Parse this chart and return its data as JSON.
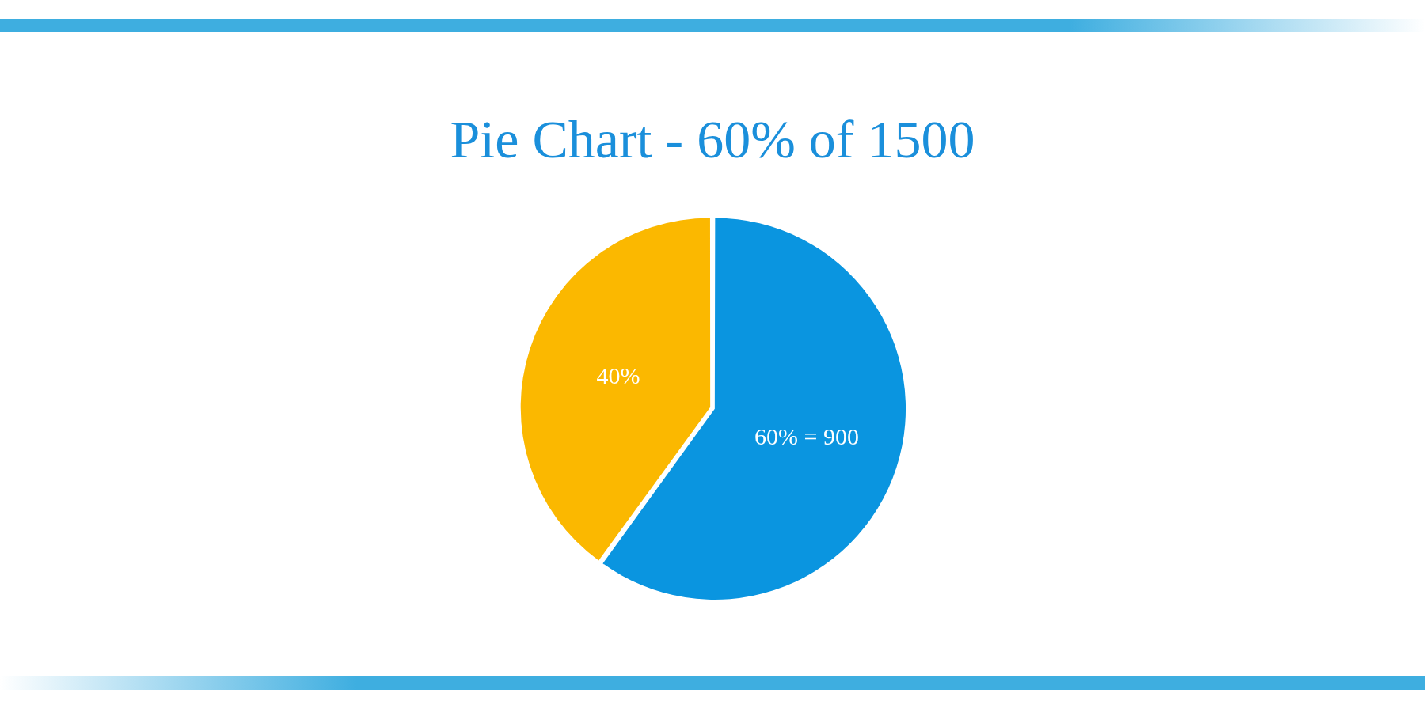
{
  "chart_data": {
    "type": "pie",
    "title": "Pie Chart - 60% of 1500",
    "categories": [
      null,
      null
    ],
    "values": [
      60,
      40
    ],
    "colors": [
      "#0a95e0",
      "#fbb800"
    ],
    "value_labels": [
      "60% = 900",
      "40%"
    ]
  }
}
